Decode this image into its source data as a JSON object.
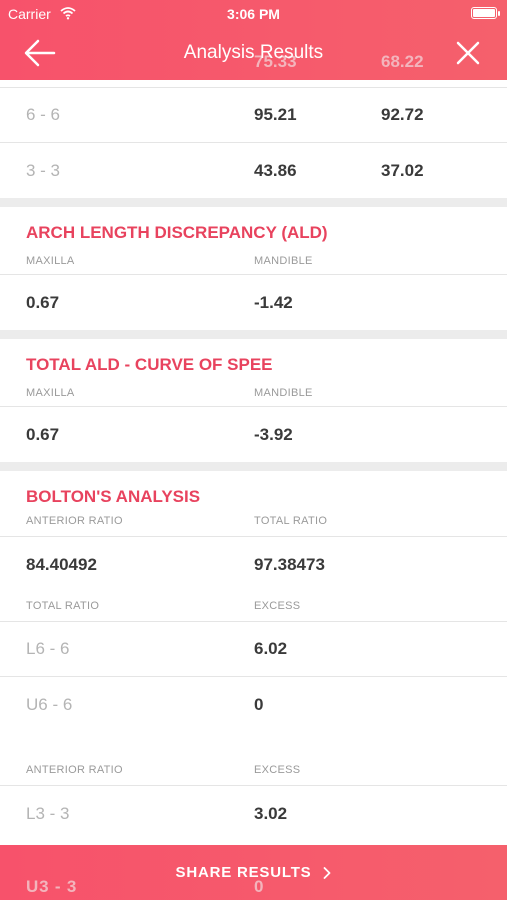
{
  "status_bar": {
    "carrier": "Carrier",
    "time": "3:06 PM"
  },
  "nav": {
    "title": "Analysis Results",
    "behind_left": "75.33",
    "behind_right": "68.22"
  },
  "top_rows": [
    {
      "label": "6 - 6",
      "v1": "95.21",
      "v2": "92.72"
    },
    {
      "label": "3 - 3",
      "v1": "43.86",
      "v2": "37.02"
    }
  ],
  "ald": {
    "title": "ARCH LENGTH DISCREPANCY (ALD)",
    "col1": "MAXILLA",
    "col2": "MANDIBLE",
    "v1": "0.67",
    "v2": "-1.42"
  },
  "total_ald": {
    "title": "TOTAL ALD - CURVE OF SPEE",
    "col1": "MAXILLA",
    "col2": "MANDIBLE",
    "v1": "0.67",
    "v2": "-3.92"
  },
  "bolton": {
    "title": "BOLTON'S ANALYSIS",
    "ratio_head1": "ANTERIOR RATIO",
    "ratio_head2": "TOTAL RATIO",
    "anterior_value": "84.40492",
    "total_value": "97.38473",
    "total_head1": "TOTAL RATIO",
    "total_head2": "EXCESS",
    "total_rows": [
      {
        "label": "L6 - 6",
        "value": "6.02"
      },
      {
        "label": "U6 - 6",
        "value": "0"
      }
    ],
    "anterior_head1": "ANTERIOR RATIO",
    "anterior_head2": "EXCESS",
    "anterior_rows": [
      {
        "label": "L3 - 3",
        "value": "3.02"
      }
    ]
  },
  "footer": {
    "share_label": "SHARE RESULTS",
    "behind_left": "U3 - 3",
    "behind_right": "0"
  }
}
